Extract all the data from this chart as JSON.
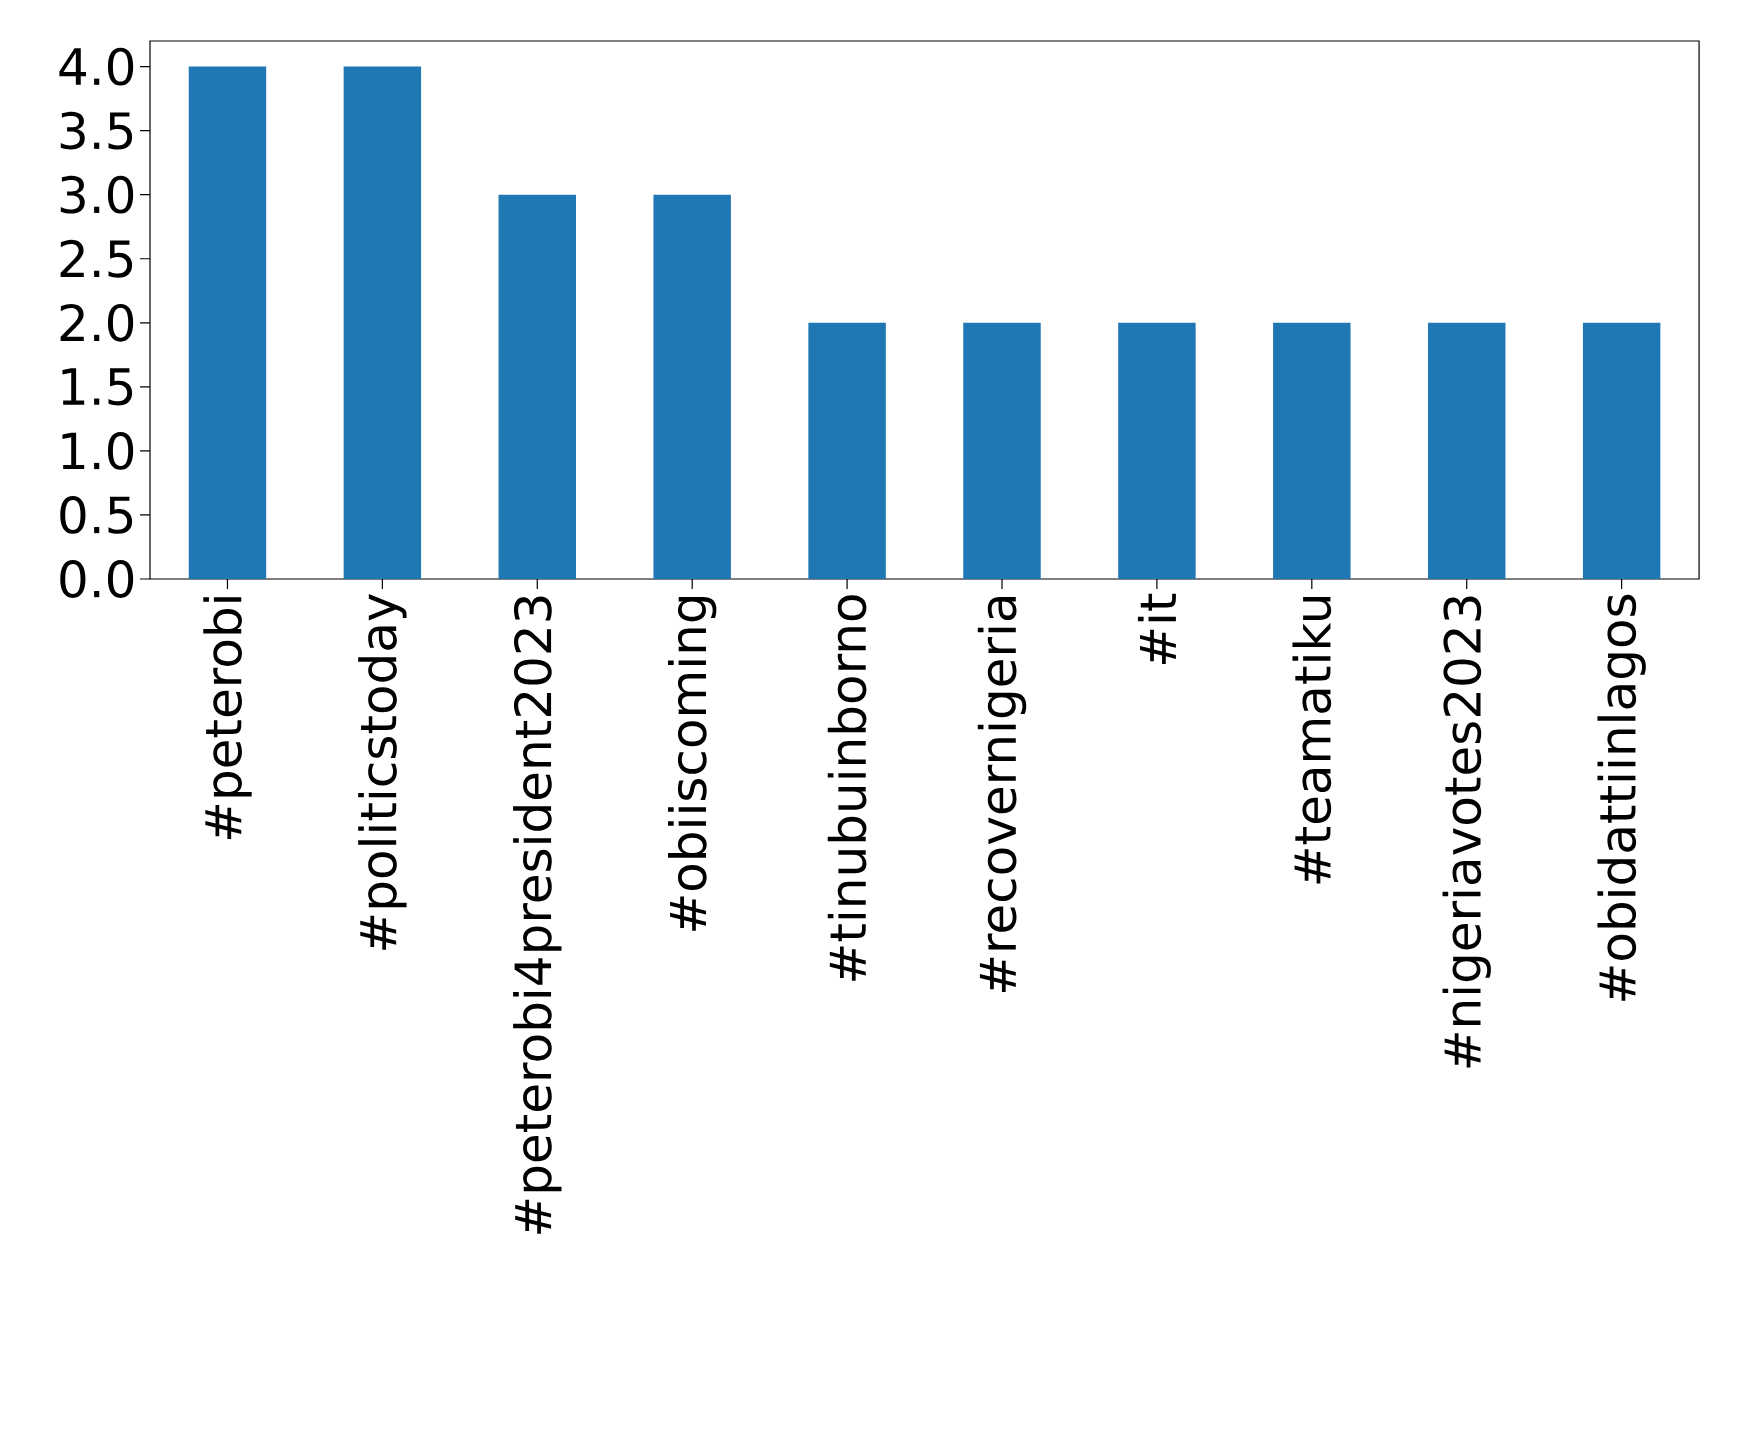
{
  "chart_data": {
    "type": "bar",
    "categories": [
      "#peterobi",
      "#politicstoday",
      "#peterobi4president2023",
      "#obiiscoming",
      "#tinubuinborno",
      "#recovernigeria",
      "#it",
      "#teamatiku",
      "#nigeriavotes2023",
      "#obidattiinlagos"
    ],
    "values": [
      4,
      4,
      3,
      3,
      2,
      2,
      2,
      2,
      2,
      2
    ],
    "color": "#1f77b4",
    "ylim": [
      0,
      4.2
    ],
    "yticks": [
      {
        "value": 0,
        "label": "0.0"
      },
      {
        "value": 0.5,
        "label": "0.5"
      },
      {
        "value": 1,
        "label": "1.0"
      },
      {
        "value": 1.5,
        "label": "1.5"
      },
      {
        "value": 2,
        "label": "2.0"
      },
      {
        "value": 2.5,
        "label": "2.5"
      },
      {
        "value": 3,
        "label": "3.0"
      },
      {
        "value": 3.5,
        "label": "3.5"
      },
      {
        "value": 4,
        "label": "4.0"
      }
    ]
  }
}
